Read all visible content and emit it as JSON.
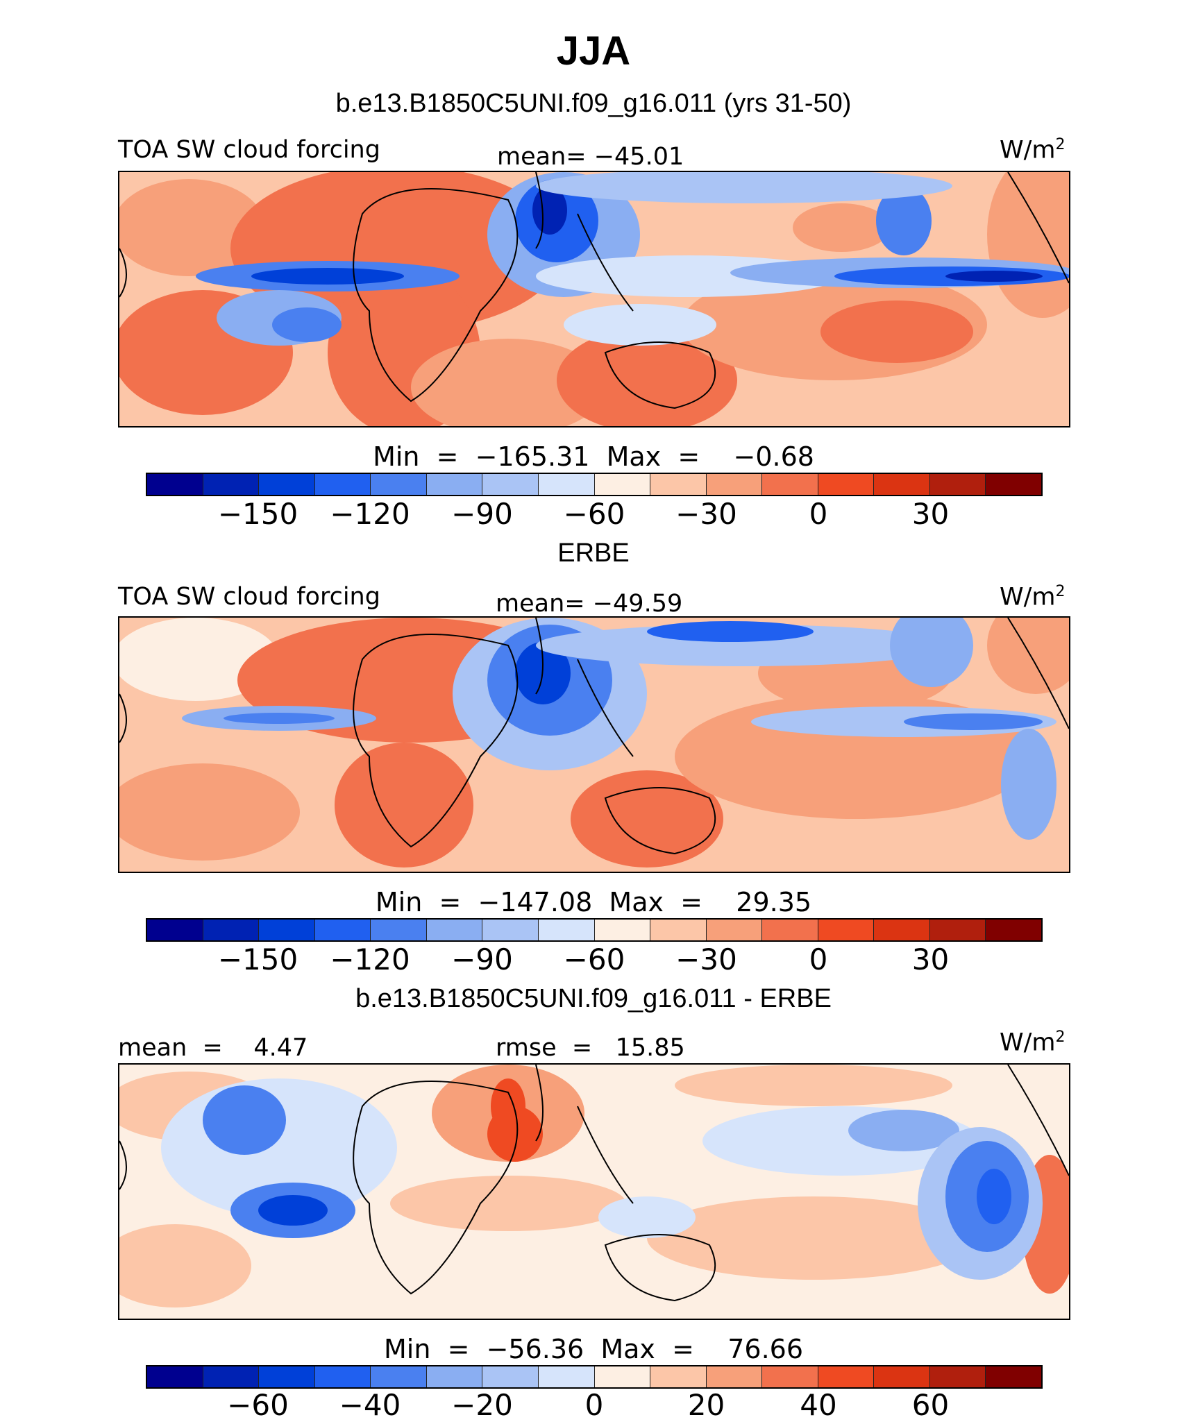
{
  "title": "JJA",
  "case_subtitle": "b.e13.B1850C5UNI.f09_g16.011 (yrs 31-50)",
  "colors": [
    "#00008f",
    "#0022b3",
    "#0040d8",
    "#2060f0",
    "#4a80f0",
    "#8aaef2",
    "#aac4f5",
    "#d6e4fb",
    "#fdefe3",
    "#fcc6a8",
    "#f7a07a",
    "#f2714d",
    "#ef4a22",
    "#db3412",
    "#b01f0d",
    "#800000"
  ],
  "panels": [
    {
      "id": "model",
      "heading": "",
      "left_label": "TOA SW cloud forcing",
      "center_label": "mean= −45.01",
      "units_base": "W/m",
      "units_exp": "2",
      "min_max": "Min  =  −165.31  Max  =    −0.68",
      "ticks": [
        "−150",
        "−120",
        "−90",
        "−60",
        "−30",
        "0",
        "30"
      ]
    },
    {
      "id": "obs",
      "heading": "ERBE",
      "left_label": "TOA SW cloud forcing",
      "center_label": "mean= −49.59",
      "units_base": "W/m",
      "units_exp": "2",
      "min_max": "Min  =  −147.08  Max  =    29.35",
      "ticks": [
        "−150",
        "−120",
        "−90",
        "−60",
        "−30",
        "0",
        "30"
      ]
    },
    {
      "id": "diff",
      "heading": "b.e13.B1850C5UNI.f09_g16.011 - ERBE",
      "left_label": "mean  =    4.47",
      "center_label": "rmse  =   15.85",
      "units_base": "W/m",
      "units_exp": "2",
      "min_max": "Min  =  −56.36  Max  =    76.66",
      "ticks": [
        "−60",
        "−40",
        "−20",
        "0",
        "20",
        "40",
        "60"
      ]
    }
  ]
}
